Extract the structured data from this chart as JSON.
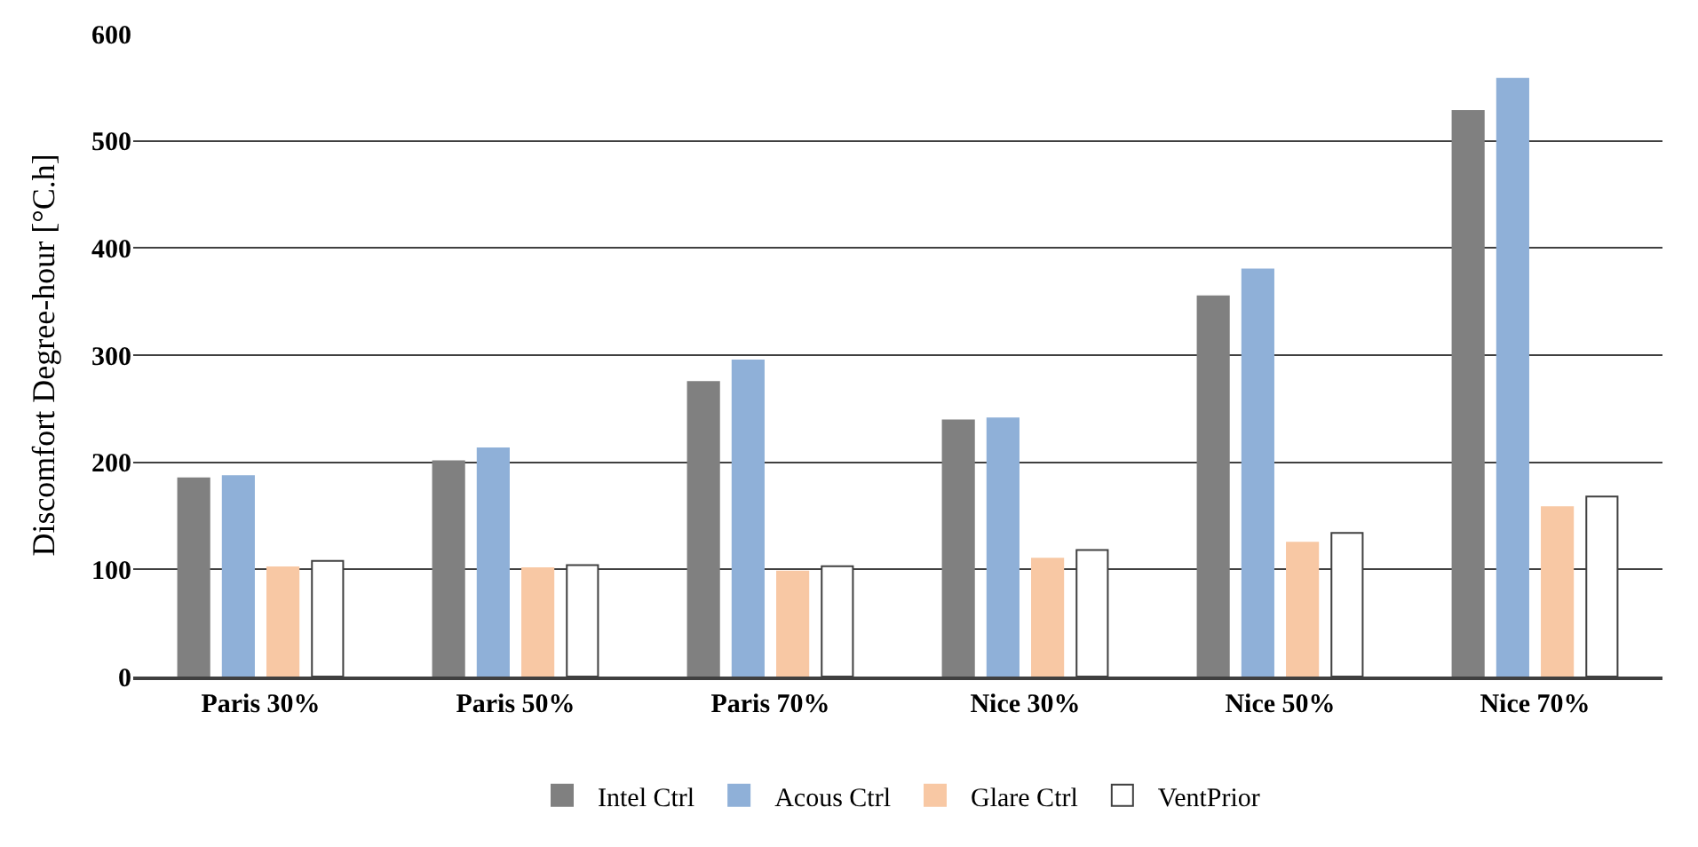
{
  "chart_data": {
    "type": "bar",
    "ylabel": "Discomfort Degree-hour [°C.h]",
    "categories": [
      "Paris 30%",
      "Paris 50%",
      "Paris 70%",
      "Nice 30%",
      "Nice 50%",
      "Nice 70%"
    ],
    "series": [
      {
        "name": "Intel Ctrl",
        "color": "#808080",
        "values": [
          185,
          201,
          275,
          239,
          355,
          528
        ]
      },
      {
        "name": "Acous Ctrl",
        "color": "#8fb0d8",
        "values": [
          187,
          213,
          295,
          241,
          380,
          558
        ]
      },
      {
        "name": "Glare Ctrl",
        "color": "#f8c8a4",
        "values": [
          102,
          101,
          98,
          110,
          125,
          158
        ]
      },
      {
        "name": "VentPrior",
        "color": "#ffffff",
        "values": [
          108,
          104,
          103,
          118,
          134,
          168
        ]
      }
    ],
    "ylim": [
      0,
      600
    ],
    "yticks": [
      0,
      100,
      200,
      300,
      400,
      500,
      600
    ],
    "grid": "y",
    "legend": "bottom"
  }
}
